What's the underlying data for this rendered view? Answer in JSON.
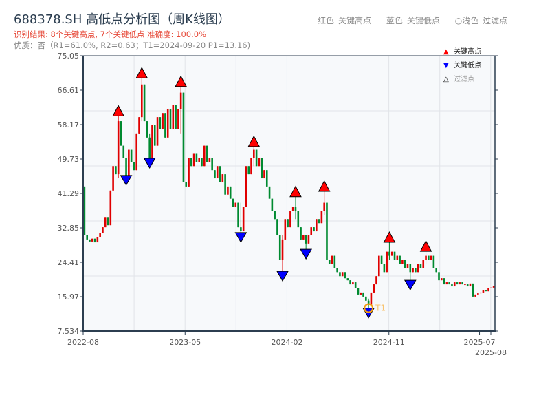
{
  "header": {
    "title": "688378.SH 高低点分析图（周K线图）",
    "result": "识别结果: 8个关键高点, 7个关键低点  准确度: 100.0%",
    "quality": "优质：否（R1=61.0%, R2=0.63；T1=2024-09-20 P1=13.16)",
    "top_legend": [
      "红色–关键高点",
      "蓝色–关键低点",
      "○浅色–过滤点"
    ]
  },
  "colors": {
    "up": "#e00000",
    "down": "#008a30",
    "key_high": "#ff0000",
    "key_low": "#0000ff",
    "t1": "#f39c12",
    "plot_bg": "#f7f9fb",
    "axis": "#2c3e50"
  },
  "chart_data": {
    "type": "candlestick",
    "period": "weekly",
    "up_color_meaning": "red=up, green=down",
    "yticks": [
      "75.05",
      "66.61",
      "58.17",
      "49.73",
      "41.29",
      "32.85",
      "24.41",
      "15.97",
      "7.534"
    ],
    "ylim": [
      7.534,
      75.05
    ],
    "xticks": [
      "2022-08",
      "2023-05",
      "2024-02",
      "2024-11",
      "2025-07",
      "2025-08"
    ],
    "grid": true,
    "legend": {
      "placement": "top-right",
      "entries": [
        {
          "label": "关键高点",
          "icon": "triangle-up-red"
        },
        {
          "label": "关键低点",
          "icon": "triangle-down-blue"
        },
        {
          "label": "过滤点",
          "icon": "triangle-up-hollow"
        }
      ]
    },
    "first_open": 43,
    "candles_note_format": "close or [close, high, low]; open = previous close",
    "candles": [
      31,
      30,
      29.5,
      30.2,
      29.3,
      30.5,
      31.5,
      33,
      35.5,
      33.5,
      42,
      48,
      46,
      [
        59,
        60.3,
        45
      ],
      53,
      50,
      [
        45.5,
        51,
        45.7
      ],
      52,
      49,
      47,
      56,
      60,
      [
        68,
        69.6,
        59
      ],
      59,
      55,
      [
        50,
        56,
        49.9
      ],
      58,
      53,
      60,
      57,
      61,
      55,
      62,
      57,
      63,
      57,
      62,
      [
        66,
        67.5,
        56
      ],
      44,
      43,
      50,
      48,
      51,
      49,
      50,
      48,
      53,
      49,
      50,
      47,
      45,
      48,
      44,
      46,
      41,
      43,
      40,
      38,
      39,
      33,
      [
        32,
        39,
        31.7
      ],
      38,
      48,
      46,
      50,
      [
        52,
        52.8,
        48
      ],
      48,
      50,
      45,
      47,
      43,
      40,
      37,
      35,
      31,
      25,
      [
        30,
        31,
        22.2
      ],
      35,
      33,
      37,
      38,
      [
        37,
        40.5,
        35
      ],
      33,
      30,
      31,
      [
        29,
        31,
        27.6
      ],
      31,
      33,
      32,
      35,
      34,
      37,
      [
        39,
        41.8,
        36
      ],
      25,
      24,
      26,
      23,
      22,
      21,
      22,
      20.5,
      20,
      19,
      19.5,
      18,
      16.5,
      17,
      16,
      15,
      [
        14,
        15.5,
        13.16
      ],
      17,
      19,
      21,
      26,
      24,
      22,
      27,
      [
        26,
        29.3,
        25
      ],
      27,
      25,
      26,
      24,
      25,
      23,
      24,
      [
        22,
        23.5,
        20
      ],
      23,
      22,
      24,
      23,
      25,
      [
        26,
        27.1,
        24
      ],
      25,
      26,
      23,
      22,
      20,
      20.5,
      19,
      19.5,
      19,
      18.5,
      19.5,
      19,
      19.5,
      19,
      19,
      18.5,
      19.2,
      16,
      16.5,
      16.8,
      17,
      17.5,
      17.3,
      18,
      18.2,
      18.5
    ],
    "key_highs": [
      13,
      22,
      37,
      65,
      81,
      92,
      117,
      131
    ],
    "key_lows": [
      16,
      25,
      60,
      76,
      85,
      109,
      125
    ],
    "annotations": [
      {
        "label": "T1",
        "candle": 109,
        "date": "2024-09-20",
        "price": 13.16
      }
    ]
  }
}
